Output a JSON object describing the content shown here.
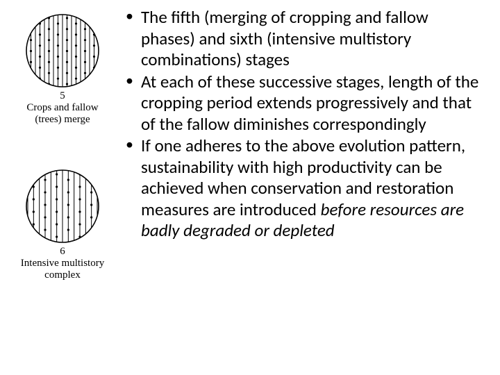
{
  "diagrams": [
    {
      "number": "5",
      "caption_line1": "Crops and fallow",
      "caption_line2": "(trees) merge",
      "type": "circle-stripes-dots",
      "circle_stroke": "#000000",
      "circle_fill": "#ffffff",
      "stripe_color": "#000000",
      "dot_color": "#000000",
      "stripe_count": 16,
      "dot_cols": 8,
      "dot_rows": 7
    },
    {
      "number": "6",
      "caption_line1": "Intensive multistory",
      "caption_line2": "complex",
      "type": "circle-stripes-dots",
      "circle_stroke": "#000000",
      "circle_fill": "#ffffff",
      "stripe_color": "#000000",
      "dot_color": "#000000",
      "stripe_count": 12,
      "dot_cols": 6,
      "dot_rows": 6
    }
  ],
  "bullets": [
    {
      "text": "The fifth (merging of cropping and fallow phases) and sixth (intensive multistory combinations) stages"
    },
    {
      "text": "At each of these successive stages, length of the cropping period extends progressively and that of the fallow diminishes correspondingly"
    },
    {
      "prefix": "If one adheres to the above evolution pattern, sustainability with high productivity can be achieved when conservation and restoration measures are introduced ",
      "italic": "before resources are badly degraded or depleted"
    }
  ],
  "text_color": "#000000",
  "bg_color": "#ffffff"
}
